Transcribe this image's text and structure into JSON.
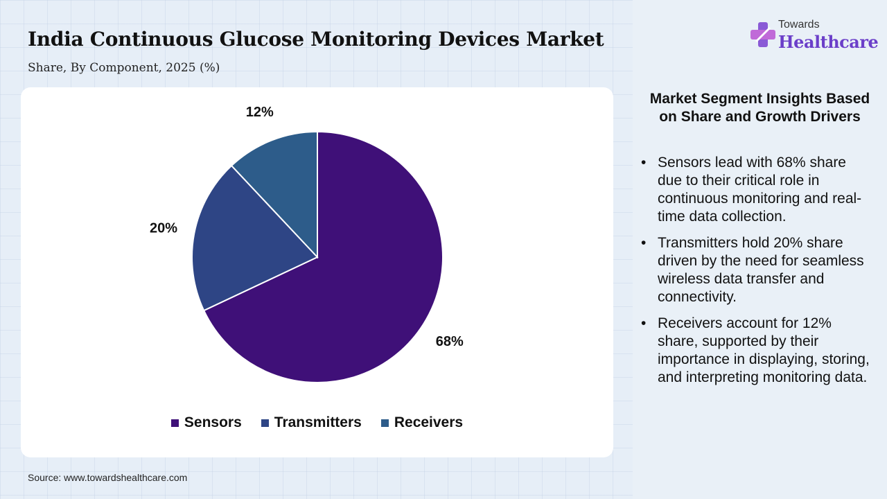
{
  "header": {
    "title": "India Continuous Glucose Monitoring Devices Market",
    "subtitle": "Share, By Component, 2025 (%)"
  },
  "chart_data": {
    "type": "pie",
    "categories": [
      "Sensors",
      "Transmitters",
      "Receivers"
    ],
    "values": [
      68,
      20,
      12
    ],
    "labels": [
      "68%",
      "20%",
      "12%"
    ],
    "colors": [
      "#3f1078",
      "#2e4585",
      "#2d5c8a"
    ],
    "legend_position": "bottom",
    "start_angle": "top, clockwise"
  },
  "source": "Source: www.towardshealthcare.com",
  "logo": {
    "line1": "Towards",
    "line2": "Healthcare"
  },
  "insights": {
    "heading": "Market Segment Insights Based on Share and Growth Drivers",
    "bullet": "•",
    "items": [
      "Sensors lead with 68% share due to their critical role in continuous monitoring and real-time data collection.",
      "Transmitters hold 20% share driven by the need for seamless wireless data transfer and connectivity.",
      "Receivers account for 12% share, supported by their importance in displaying, storing, and interpreting monitoring data."
    ]
  },
  "colors": {
    "brand": "#6b3fc9",
    "background": "#e6eef7"
  }
}
